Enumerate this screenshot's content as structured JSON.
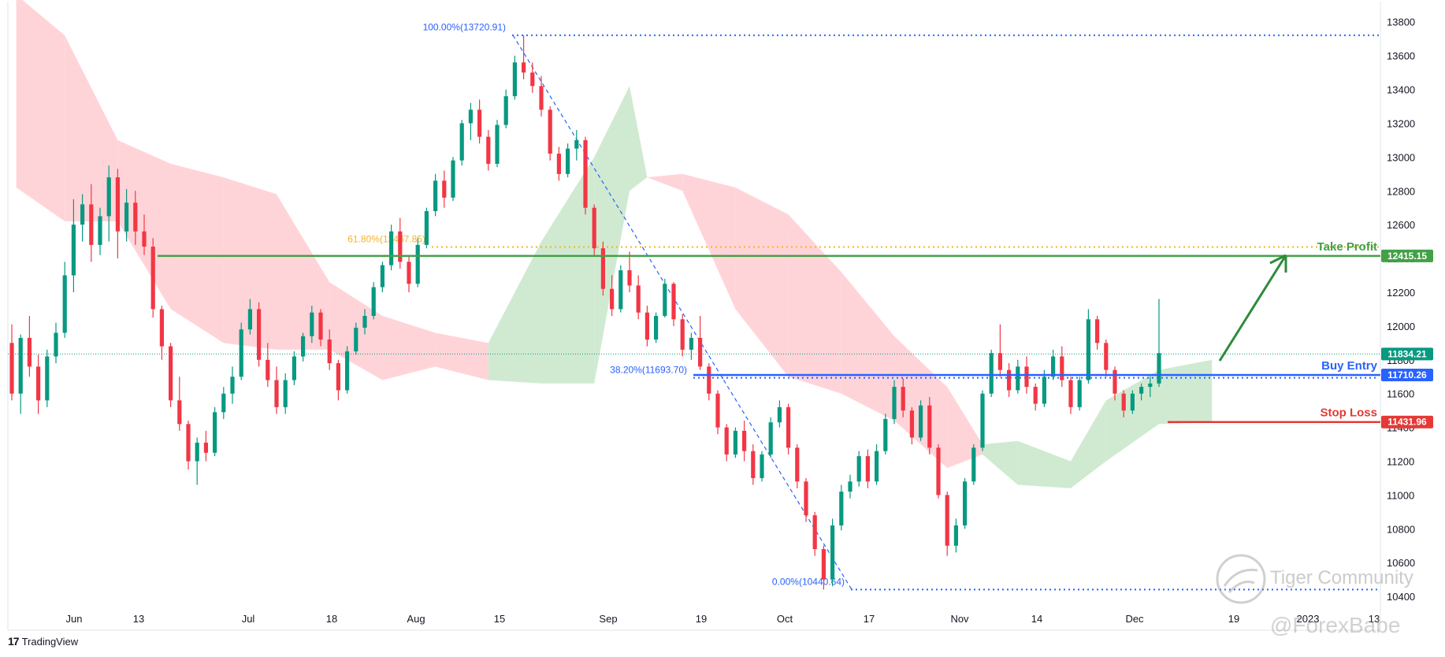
{
  "chart_data": {
    "type": "candlestick",
    "y_range": [
      10200,
      13920
    ],
    "y_ticks": [
      10400,
      10600,
      10800,
      11000,
      11200,
      11400,
      11600,
      11800,
      12000,
      12200,
      12400,
      12600,
      12800,
      13000,
      13200,
      13400,
      13600,
      13800
    ],
    "x_ticks": [
      "Jun",
      "13",
      "Jul",
      "18",
      "Aug",
      "15",
      "Sep",
      "19",
      "Oct",
      "17",
      "Nov",
      "14",
      "Dec",
      "19",
      "2023",
      "13"
    ],
    "fib_levels": [
      {
        "label": "100.00%(13720.91)",
        "value": 13720.91,
        "color": "#2962ff"
      },
      {
        "label": "61.80%(12467.85)",
        "value": 12467.85,
        "color": "#f0b429"
      },
      {
        "label": "38.20%(11693.70)",
        "value": 11693.7,
        "color": "#2962ff"
      },
      {
        "label": "0.00%(10440.64)",
        "value": 10440.64,
        "color": "#2962ff"
      }
    ],
    "levels": [
      {
        "name": "Take Profit",
        "price": "12415.15",
        "value": 12415.15,
        "color": "#43a047"
      },
      {
        "name": "Buy Entry",
        "price": "11710.26",
        "value": 11710.26,
        "color": "#2962ff"
      },
      {
        "name": "Stop Loss",
        "price": "11431.96",
        "value": 11431.96,
        "color": "#e53935"
      }
    ],
    "current_price": {
      "price": "11834.21",
      "value": 11834.21,
      "color": "#089981"
    },
    "up_color": "#089981",
    "down_color": "#f23645",
    "cloud_bull_color": "#c8e6c9",
    "cloud_bear_color": "#ffcdd2",
    "candles": [
      [
        11900,
        12010,
        11560,
        11600
      ],
      [
        11600,
        11950,
        11480,
        11930
      ],
      [
        11930,
        12060,
        11700,
        11760
      ],
      [
        11760,
        11830,
        11480,
        11560
      ],
      [
        11560,
        11860,
        11520,
        11820
      ],
      [
        11820,
        12020,
        11780,
        11960
      ],
      [
        11960,
        12380,
        11930,
        12300
      ],
      [
        12300,
        12750,
        12200,
        12600
      ],
      [
        12600,
        12780,
        12500,
        12720
      ],
      [
        12720,
        12840,
        12380,
        12480
      ],
      [
        12480,
        12700,
        12420,
        12650
      ],
      [
        12650,
        12950,
        12500,
        12880
      ],
      [
        12880,
        12930,
        12400,
        12560
      ],
      [
        12560,
        12810,
        12500,
        12730
      ],
      [
        12730,
        12800,
        12480,
        12560
      ],
      [
        12560,
        12660,
        12420,
        12470
      ],
      [
        12470,
        12520,
        12050,
        12100
      ],
      [
        12100,
        12120,
        11800,
        11880
      ],
      [
        11880,
        11900,
        11520,
        11560
      ],
      [
        11560,
        11700,
        11380,
        11420
      ],
      [
        11420,
        11440,
        11150,
        11200
      ],
      [
        11200,
        11340,
        11060,
        11310
      ],
      [
        11310,
        11380,
        11200,
        11250
      ],
      [
        11250,
        11520,
        11230,
        11490
      ],
      [
        11490,
        11640,
        11450,
        11600
      ],
      [
        11600,
        11760,
        11540,
        11700
      ],
      [
        11700,
        12020,
        11680,
        11980
      ],
      [
        11980,
        12160,
        11950,
        12100
      ],
      [
        12100,
        12140,
        11760,
        11800
      ],
      [
        11800,
        11900,
        11640,
        11680
      ],
      [
        11680,
        11760,
        11480,
        11520
      ],
      [
        11520,
        11720,
        11480,
        11680
      ],
      [
        11680,
        11850,
        11650,
        11820
      ],
      [
        11820,
        11960,
        11790,
        11940
      ],
      [
        11940,
        12120,
        11900,
        12080
      ],
      [
        12080,
        12100,
        11880,
        11920
      ],
      [
        11920,
        11980,
        11740,
        11780
      ],
      [
        11780,
        11800,
        11560,
        11620
      ],
      [
        11620,
        11880,
        11600,
        11850
      ],
      [
        11850,
        12020,
        11830,
        11990
      ],
      [
        11990,
        12100,
        11950,
        12060
      ],
      [
        12060,
        12260,
        12040,
        12230
      ],
      [
        12230,
        12380,
        12200,
        12360
      ],
      [
        12360,
        12600,
        12330,
        12560
      ],
      [
        12560,
        12640,
        12340,
        12380
      ],
      [
        12380,
        12420,
        12200,
        12250
      ],
      [
        12250,
        12520,
        12230,
        12480
      ],
      [
        12480,
        12700,
        12460,
        12680
      ],
      [
        12680,
        12900,
        12650,
        12860
      ],
      [
        12860,
        12920,
        12700,
        12760
      ],
      [
        12760,
        13000,
        12740,
        12980
      ],
      [
        12980,
        13220,
        12950,
        13200
      ],
      [
        13200,
        13320,
        13100,
        13280
      ],
      [
        13280,
        13340,
        13080,
        13120
      ],
      [
        13120,
        13160,
        12920,
        12960
      ],
      [
        12960,
        13220,
        12940,
        13190
      ],
      [
        13190,
        13400,
        13170,
        13360
      ],
      [
        13360,
        13600,
        13340,
        13560
      ],
      [
        13560,
        13720,
        13460,
        13500
      ],
      [
        13500,
        13560,
        13380,
        13420
      ],
      [
        13420,
        13480,
        13240,
        13280
      ],
      [
        13280,
        13300,
        12980,
        13020
      ],
      [
        13020,
        13060,
        12860,
        12900
      ],
      [
        12900,
        13080,
        12880,
        13050
      ],
      [
        13050,
        13160,
        12980,
        13100
      ],
      [
        13100,
        13120,
        12660,
        12700
      ],
      [
        12700,
        12720,
        12420,
        12460
      ],
      [
        12460,
        12500,
        12180,
        12220
      ],
      [
        12220,
        12300,
        12060,
        12100
      ],
      [
        12100,
        12360,
        12080,
        12330
      ],
      [
        12330,
        12440,
        12200,
        12240
      ],
      [
        12240,
        12300,
        12040,
        12080
      ],
      [
        12080,
        12120,
        11880,
        11920
      ],
      [
        11920,
        12080,
        11900,
        12060
      ],
      [
        12060,
        12280,
        12050,
        12250
      ],
      [
        12250,
        12260,
        12000,
        12040
      ],
      [
        12040,
        12070,
        11820,
        11860
      ],
      [
        11860,
        11960,
        11800,
        11930
      ],
      [
        11930,
        12060,
        11740,
        11760
      ],
      [
        11760,
        11780,
        11560,
        11600
      ],
      [
        11600,
        11620,
        11360,
        11400
      ],
      [
        11400,
        11420,
        11200,
        11240
      ],
      [
        11240,
        11400,
        11220,
        11380
      ],
      [
        11380,
        11440,
        11200,
        11260
      ],
      [
        11260,
        11300,
        11060,
        11100
      ],
      [
        11100,
        11260,
        11080,
        11240
      ],
      [
        11240,
        11460,
        11220,
        11430
      ],
      [
        11430,
        11560,
        11400,
        11520
      ],
      [
        11520,
        11540,
        11240,
        11280
      ],
      [
        11280,
        11300,
        11040,
        11080
      ],
      [
        11080,
        11100,
        10840,
        10880
      ],
      [
        10880,
        10900,
        10640,
        10680
      ],
      [
        10680,
        10700,
        10440,
        10500
      ],
      [
        10500,
        10860,
        10460,
        10820
      ],
      [
        10820,
        11060,
        10790,
        11020
      ],
      [
        11020,
        11120,
        10980,
        11080
      ],
      [
        11080,
        11260,
        11050,
        11230
      ],
      [
        11230,
        11270,
        11040,
        11080
      ],
      [
        11080,
        11300,
        11060,
        11260
      ],
      [
        11260,
        11480,
        11240,
        11450
      ],
      [
        11450,
        11680,
        11420,
        11640
      ],
      [
        11640,
        11690,
        11460,
        11500
      ],
      [
        11500,
        11520,
        11300,
        11340
      ],
      [
        11340,
        11560,
        11320,
        11530
      ],
      [
        11530,
        11580,
        11240,
        11280
      ],
      [
        11280,
        11300,
        10980,
        11000
      ],
      [
        11000,
        11020,
        10640,
        10700
      ],
      [
        10700,
        10860,
        10660,
        10820
      ],
      [
        10820,
        11100,
        10800,
        11080
      ],
      [
        11080,
        11300,
        11060,
        11280
      ],
      [
        11280,
        11620,
        11260,
        11600
      ],
      [
        11600,
        11860,
        11580,
        11840
      ],
      [
        11840,
        12010,
        11700,
        11740
      ],
      [
        11740,
        11780,
        11580,
        11620
      ],
      [
        11620,
        11800,
        11600,
        11760
      ],
      [
        11760,
        11820,
        11600,
        11640
      ],
      [
        11640,
        11660,
        11500,
        11540
      ],
      [
        11540,
        11740,
        11520,
        11700
      ],
      [
        11700,
        11860,
        11680,
        11820
      ],
      [
        11820,
        11880,
        11640,
        11680
      ],
      [
        11680,
        11700,
        11480,
        11520
      ],
      [
        11520,
        11700,
        11500,
        11680
      ],
      [
        11680,
        12100,
        11660,
        12040
      ],
      [
        12040,
        12060,
        11860,
        11900
      ],
      [
        11900,
        11920,
        11700,
        11740
      ],
      [
        11740,
        11760,
        11560,
        11600
      ],
      [
        11600,
        11620,
        11460,
        11500
      ],
      [
        11500,
        11620,
        11480,
        11600
      ],
      [
        11600,
        11660,
        11560,
        11640
      ],
      [
        11640,
        11700,
        11580,
        11660
      ],
      [
        11660,
        12160,
        11640,
        11840
      ]
    ],
    "cloud": [
      {
        "x": 0.5,
        "a": 12820,
        "b": 13960
      },
      {
        "x": 6,
        "a": 12620,
        "b": 13720
      },
      {
        "x": 12,
        "a": 12620,
        "b": 13100
      },
      {
        "x": 18,
        "a": 12100,
        "b": 12960
      },
      {
        "x": 24,
        "a": 11900,
        "b": 12880
      },
      {
        "x": 30,
        "a": 11860,
        "b": 12780
      },
      {
        "x": 36,
        "a": 11860,
        "b": 12260
      },
      {
        "x": 42,
        "a": 11680,
        "b": 12060
      },
      {
        "x": 48,
        "a": 11760,
        "b": 11960
      },
      {
        "x": 54,
        "a": 11680,
        "b": 11900
      },
      {
        "x": 60,
        "a": 11660,
        "b": 12500
      },
      {
        "x": 66,
        "a": 11660,
        "b": 13000
      },
      {
        "x": 70,
        "a": 12800,
        "b": 13420
      },
      {
        "x": 72,
        "a": 12880,
        "b": 12880
      },
      {
        "x": 76,
        "a": 12800,
        "b": 12900
      },
      {
        "x": 82,
        "a": 12100,
        "b": 12820
      },
      {
        "x": 88,
        "a": 11700,
        "b": 12660
      },
      {
        "x": 94,
        "a": 11600,
        "b": 12320
      },
      {
        "x": 100,
        "a": 11440,
        "b": 11940
      },
      {
        "x": 106,
        "a": 11160,
        "b": 11640
      },
      {
        "x": 110,
        "a": 11240,
        "b": 11300
      },
      {
        "x": 114,
        "a": 11060,
        "b": 11320
      },
      {
        "x": 120,
        "a": 11040,
        "b": 11200
      },
      {
        "x": 124,
        "a": 11200,
        "b": 11560
      },
      {
        "x": 130,
        "a": 11420,
        "b": 11740
      },
      {
        "x": 136,
        "a": 11430,
        "b": 11800
      }
    ]
  },
  "branding": {
    "logo_mark": "17",
    "logo_text": "TradingView",
    "watermark1": "Tiger Community",
    "watermark2": "@ForexBabe"
  }
}
